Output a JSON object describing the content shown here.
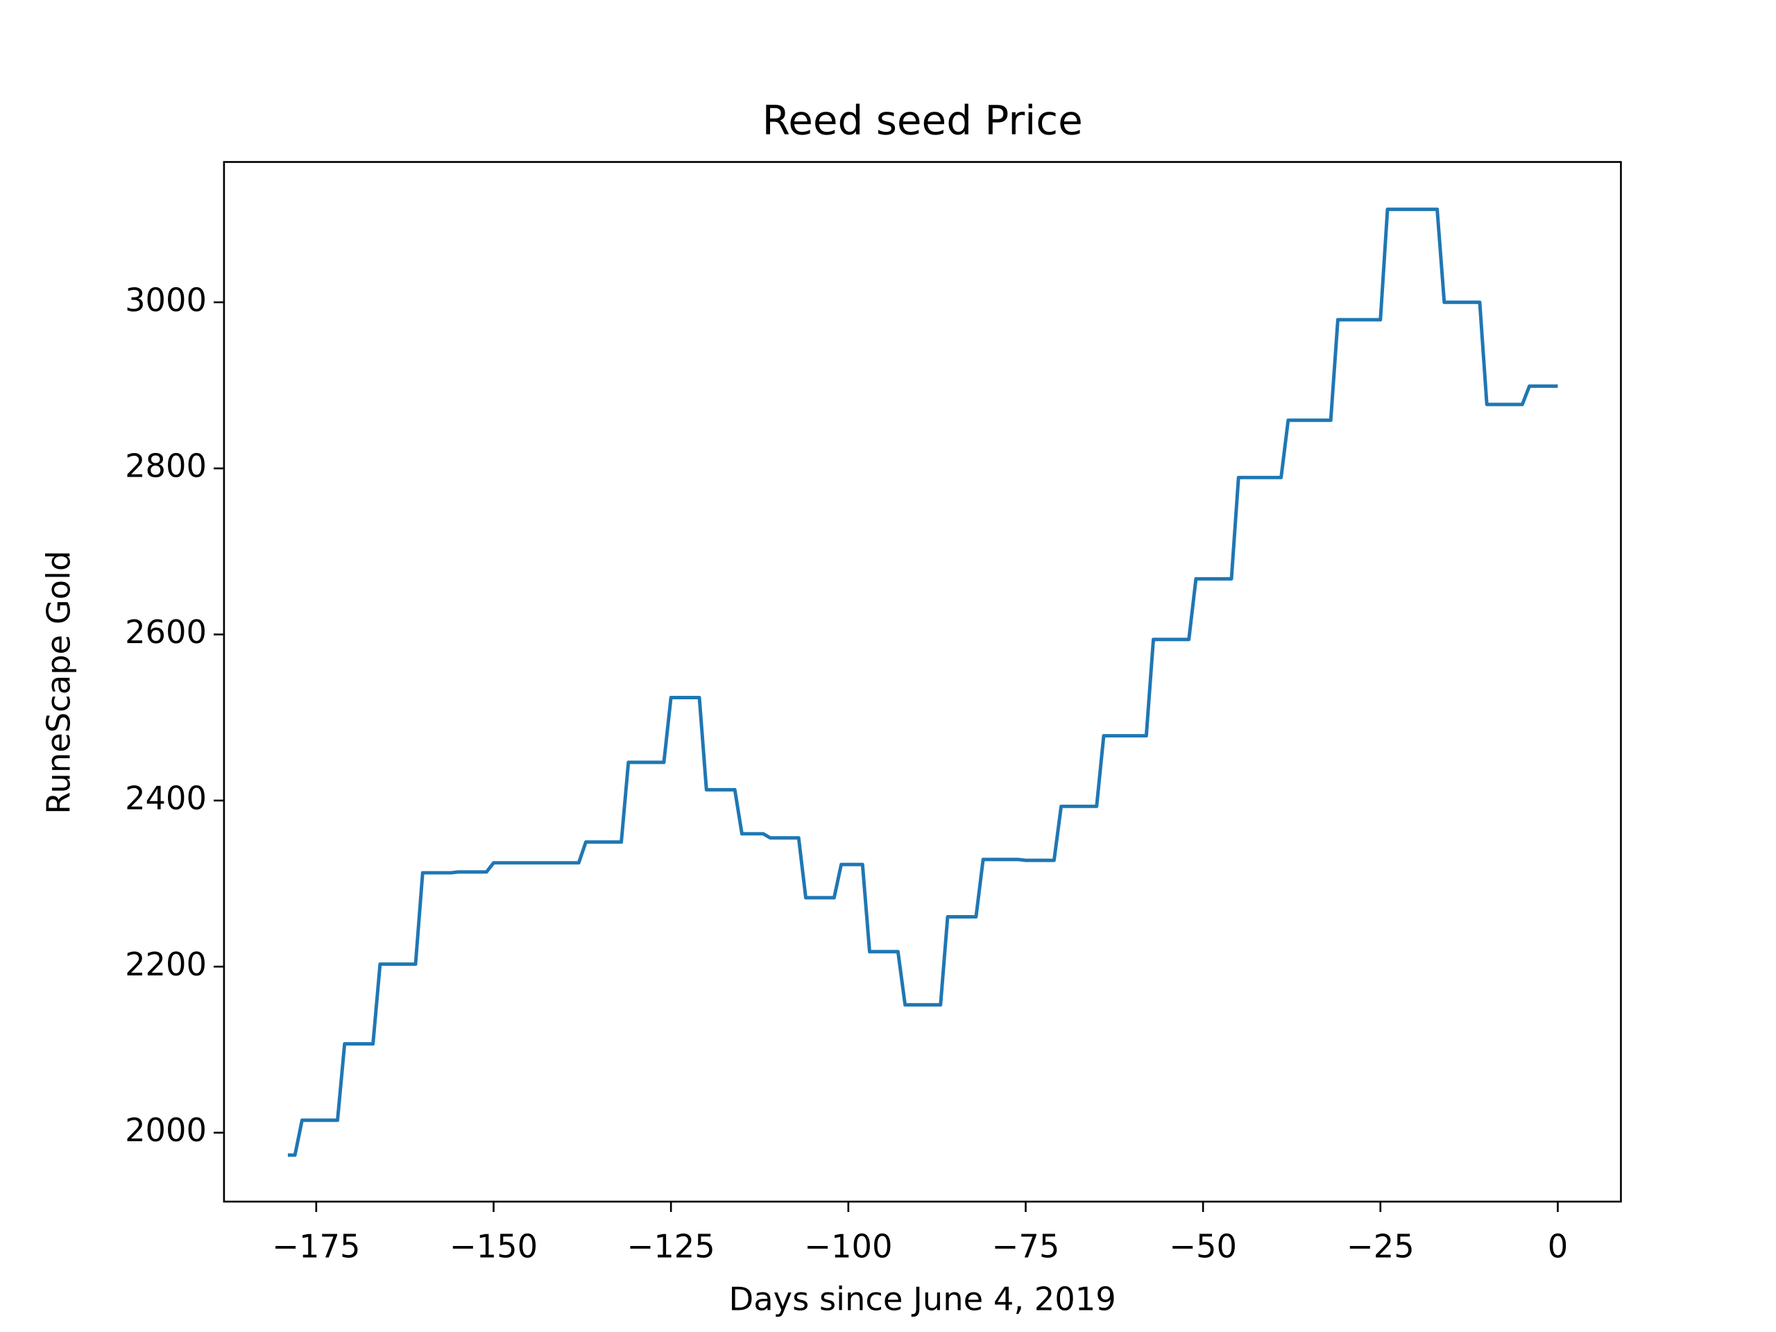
{
  "chart_data": {
    "type": "line",
    "title": "Reed seed Price",
    "xlabel": "Days since June 4, 2019",
    "ylabel": "RuneScape Gold",
    "x": [
      -179,
      -178,
      -177,
      -172,
      -171,
      -167,
      -166,
      -161,
      -160,
      -156,
      -155,
      -151,
      -150,
      -138,
      -137,
      -132,
      -131,
      -126,
      -125,
      -121,
      -120,
      -116,
      -115,
      -112,
      -111,
      -107,
      -106,
      -102,
      -101,
      -98,
      -97,
      -93,
      -92,
      -87,
      -86,
      -82,
      -81,
      -76,
      -75,
      -71,
      -70,
      -65,
      -64,
      -58,
      -57,
      -52,
      -51,
      -46,
      -45,
      -39,
      -38,
      -32,
      -31,
      -25,
      -24,
      -17,
      -16,
      -11,
      -10,
      -5,
      -4,
      0
    ],
    "series": [
      {
        "name": "Reed seed",
        "color": "#1f77b4",
        "values": [
          1973,
          1973,
          2015,
          2015,
          2107,
          2107,
          2203,
          2203,
          2313,
          2313,
          2314,
          2314,
          2325,
          2325,
          2350,
          2350,
          2446,
          2446,
          2524,
          2524,
          2413,
          2413,
          2360,
          2360,
          2355,
          2355,
          2283,
          2283,
          2323,
          2323,
          2218,
          2218,
          2154,
          2154,
          2260,
          2260,
          2329,
          2329,
          2328,
          2328,
          2393,
          2393,
          2478,
          2478,
          2594,
          2594,
          2667,
          2667,
          2789,
          2789,
          2858,
          2858,
          2979,
          2979,
          3112,
          3112,
          3000,
          3000,
          2877,
          2877,
          2899,
          2899
        ]
      }
    ],
    "xlim": [
      -188,
      8.9
    ],
    "ylim": [
      1917,
      3169
    ],
    "xticks": [
      {
        "value": -175,
        "label": "−175"
      },
      {
        "value": -150,
        "label": "−150"
      },
      {
        "value": -125,
        "label": "−125"
      },
      {
        "value": -100,
        "label": "−100"
      },
      {
        "value": -75,
        "label": "−75"
      },
      {
        "value": -50,
        "label": "−50"
      },
      {
        "value": -25,
        "label": "−25"
      },
      0
    ],
    "yticks": [
      2000,
      2200,
      2400,
      2600,
      2800,
      3000
    ]
  }
}
